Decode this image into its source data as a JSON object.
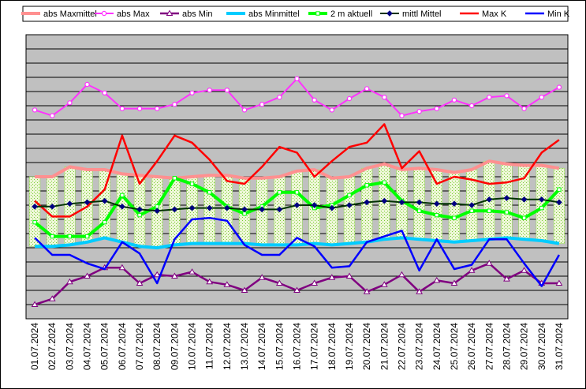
{
  "chart_data": {
    "type": "line",
    "title": "",
    "xlabel": "",
    "ylabel": "",
    "ylim": [
      0,
      20
    ],
    "grid": true,
    "legend_position": "top",
    "categories": [
      "01.07.2024",
      "02.07.2024",
      "03.07.2024",
      "04.07.2024",
      "05.07.2024",
      "06.07.2024",
      "07.07.2024",
      "08.07.2024",
      "09.07.2024",
      "10.07.2024",
      "11.07.2024",
      "12.07.2024",
      "13.07.2024",
      "14.07.2024",
      "15.07.2024",
      "16.07.2024",
      "17.07.2024",
      "18.07.2024",
      "19.07.2024",
      "20.07.2024",
      "21.07.2024",
      "22.07.2024",
      "23.07.2024",
      "24.07.2024",
      "25.07.2024",
      "26.07.2024",
      "27.07.2024",
      "28.07.2024",
      "29.07.2024",
      "30.07.2024",
      "31.07.2024"
    ],
    "bands": {
      "upper": [
        10.0,
        10.0,
        10.7,
        10.5,
        10.5,
        10.2,
        10.1,
        10.0,
        9.9,
        10.0,
        10.1,
        10.1,
        9.9,
        9.9,
        10.0,
        10.4,
        10.5,
        9.9,
        10.0,
        10.6,
        10.9,
        10.5,
        10.6,
        10.5,
        10.3,
        10.5,
        11.1,
        10.9,
        10.8,
        10.8,
        10.6
      ],
      "lower": [
        5.1,
        5.1,
        5.2,
        5.4,
        5.7,
        5.4,
        5.1,
        5.0,
        5.2,
        5.3,
        5.3,
        5.3,
        5.3,
        5.2,
        5.2,
        5.2,
        5.3,
        5.2,
        5.3,
        5.4,
        5.6,
        5.7,
        5.6,
        5.5,
        5.4,
        5.5,
        5.6,
        5.7,
        5.6,
        5.5,
        5.3
      ]
    },
    "series": [
      {
        "name": "abs Maxmittel",
        "color": "#ff9090",
        "values": [
          10.0,
          10.0,
          10.7,
          10.5,
          10.5,
          10.2,
          10.1,
          10.0,
          9.9,
          10.0,
          10.1,
          10.1,
          9.9,
          9.9,
          10.0,
          10.4,
          10.5,
          9.9,
          10.0,
          10.6,
          10.9,
          10.5,
          10.6,
          10.5,
          10.3,
          10.5,
          11.1,
          10.9,
          10.8,
          10.8,
          10.6
        ]
      },
      {
        "name": "abs Max",
        "color": "#ff33ff",
        "values": [
          14.7,
          14.3,
          15.2,
          16.5,
          15.9,
          14.8,
          14.8,
          14.8,
          15.1,
          15.9,
          16.1,
          16.1,
          14.7,
          15.1,
          15.6,
          16.9,
          15.4,
          14.7,
          15.5,
          16.2,
          15.6,
          14.3,
          14.6,
          14.8,
          15.4,
          15.0,
          15.6,
          15.7,
          14.8,
          15.6,
          16.3
        ]
      },
      {
        "name": "abs Min",
        "color": "#800080",
        "values": [
          1.0,
          1.4,
          2.6,
          3.0,
          3.6,
          3.6,
          2.5,
          3.1,
          3.0,
          3.3,
          2.6,
          2.4,
          2.0,
          2.9,
          2.5,
          2.0,
          2.5,
          2.9,
          3.0,
          1.9,
          2.4,
          3.1,
          1.9,
          2.7,
          2.5,
          3.4,
          3.9,
          2.8,
          3.4,
          2.5,
          2.5
        ]
      },
      {
        "name": "abs Minmittel",
        "color": "#00ccff",
        "values": [
          5.1,
          5.1,
          5.2,
          5.4,
          5.7,
          5.4,
          5.1,
          5.0,
          5.2,
          5.3,
          5.3,
          5.3,
          5.3,
          5.2,
          5.2,
          5.2,
          5.3,
          5.2,
          5.3,
          5.4,
          5.6,
          5.7,
          5.6,
          5.5,
          5.4,
          5.5,
          5.6,
          5.7,
          5.6,
          5.5,
          5.3
        ]
      },
      {
        "name": "2 m aktuell",
        "color": "#00ff00",
        "values": [
          6.8,
          5.8,
          5.8,
          5.8,
          6.8,
          8.7,
          7.3,
          7.9,
          9.9,
          9.5,
          8.9,
          7.9,
          7.4,
          7.9,
          8.9,
          8.9,
          7.8,
          8.0,
          8.7,
          9.4,
          9.6,
          8.3,
          7.6,
          7.3,
          7.1,
          7.6,
          7.6,
          7.5,
          7.1,
          7.8,
          9.1
        ]
      },
      {
        "name": "mittl Mittel",
        "color": "#003300",
        "values": [
          7.9,
          7.9,
          8.1,
          8.2,
          8.3,
          7.9,
          7.7,
          7.6,
          7.7,
          7.8,
          7.8,
          7.8,
          7.7,
          7.7,
          7.7,
          8.0,
          8.0,
          7.8,
          8.0,
          8.2,
          8.3,
          8.2,
          8.2,
          8.1,
          8.1,
          8.0,
          8.4,
          8.5,
          8.4,
          8.4,
          8.2
        ]
      },
      {
        "name": "Max K",
        "color": "#ff0000",
        "values": [
          8.3,
          7.2,
          7.2,
          7.9,
          9.1,
          12.9,
          9.5,
          11.1,
          12.9,
          12.4,
          11.2,
          9.7,
          9.5,
          10.7,
          12.1,
          11.7,
          10.0,
          11.1,
          12.1,
          12.4,
          13.7,
          10.6,
          11.8,
          9.5,
          10.0,
          9.8,
          9.5,
          9.6,
          9.9,
          11.7,
          12.6
        ]
      },
      {
        "name": "Min K",
        "color": "#0000ff",
        "values": [
          5.7,
          4.5,
          4.5,
          3.9,
          3.5,
          5.4,
          4.6,
          2.5,
          5.6,
          7.0,
          7.1,
          6.9,
          5.2,
          4.5,
          4.5,
          5.7,
          5.1,
          3.6,
          3.7,
          5.4,
          5.8,
          6.2,
          3.4,
          5.6,
          3.5,
          3.8,
          5.6,
          5.6,
          3.9,
          2.3,
          4.5
        ]
      }
    ]
  }
}
